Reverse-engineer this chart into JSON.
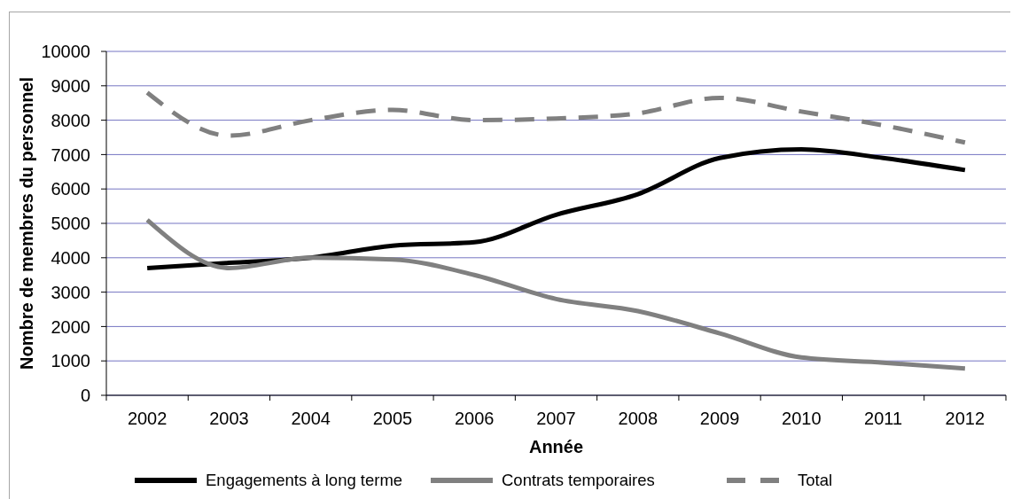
{
  "chart_data": {
    "type": "line",
    "xlabel": "Année",
    "ylabel": "Nombre de membres du personnel",
    "categories": [
      "2002",
      "2003",
      "2004",
      "2005",
      "2006",
      "2007",
      "2008",
      "2009",
      "2010",
      "2011",
      "2012"
    ],
    "ylim": [
      0,
      10000
    ],
    "yticks": [
      0,
      1000,
      2000,
      3000,
      4000,
      5000,
      6000,
      7000,
      8000,
      9000,
      10000
    ],
    "grid": "y",
    "legend": "bottom",
    "marker": "none",
    "line_style": "solid",
    "series": [
      {
        "name": "Engagements à long terme",
        "color": "#000000",
        "values": [
          3700,
          3850,
          4000,
          4350,
          4450,
          5250,
          5850,
          6900,
          7150,
          6900,
          6550
        ]
      },
      {
        "name": "Contrats temporaires",
        "color": "#808080",
        "values": [
          5100,
          3700,
          4000,
          3950,
          3500,
          2800,
          2450,
          1800,
          1100,
          950,
          780
        ]
      },
      {
        "name": "Total",
        "color": "#808080",
        "line_style": "dashed",
        "values": [
          8800,
          7550,
          8000,
          8300,
          8000,
          8050,
          8200,
          8650,
          8250,
          7850,
          7350
        ]
      }
    ]
  }
}
